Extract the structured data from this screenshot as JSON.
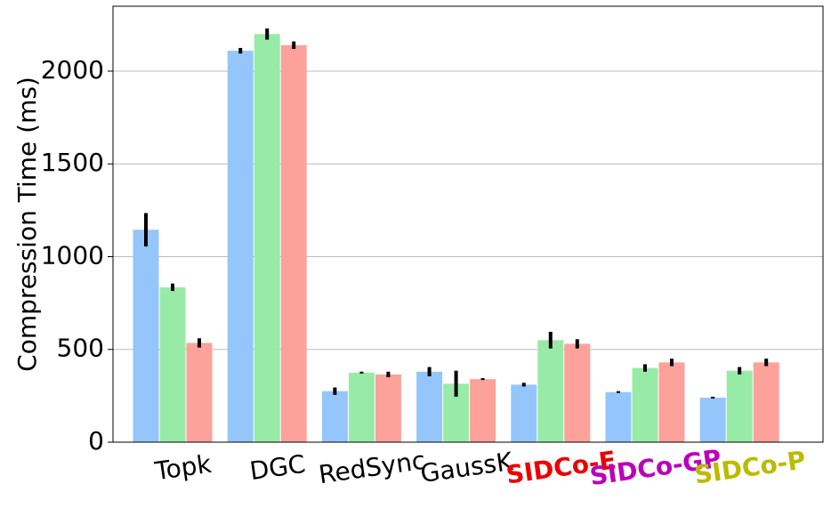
{
  "chart_data": {
    "type": "bar",
    "y_label": "Compression Time (ms)",
    "categories": [
      "Topk",
      "DGC",
      "RedSync",
      "GaussK",
      "SIDCo-E",
      "SIDCo-GP",
      "SIDCo-P"
    ],
    "category_colors": [
      "#000000",
      "#000000",
      "#000000",
      "#000000",
      "#ee0000",
      "#bb00bb",
      "#bbbb00"
    ],
    "category_weights": [
      "normal",
      "normal",
      "normal",
      "normal",
      "bold",
      "bold",
      "bold"
    ],
    "series": [
      {
        "color": "#94c6fb",
        "values": [
          1145,
          2110,
          275,
          380,
          310,
          270,
          240
        ],
        "errors": [
          90,
          15,
          20,
          25,
          10,
          5,
          5
        ]
      },
      {
        "color": "#98eba6",
        "values": [
          835,
          2200,
          375,
          315,
          550,
          400,
          385
        ],
        "errors": [
          20,
          30,
          5,
          70,
          45,
          20,
          20
        ]
      },
      {
        "color": "#fca29a",
        "values": [
          535,
          2140,
          365,
          340,
          530,
          430,
          430
        ],
        "errors": [
          25,
          20,
          15,
          5,
          25,
          20,
          20
        ]
      }
    ],
    "ylim": [
      0,
      2350
    ],
    "yticks": [
      0,
      500,
      1000,
      1500,
      2000
    ],
    "grid": true
  }
}
